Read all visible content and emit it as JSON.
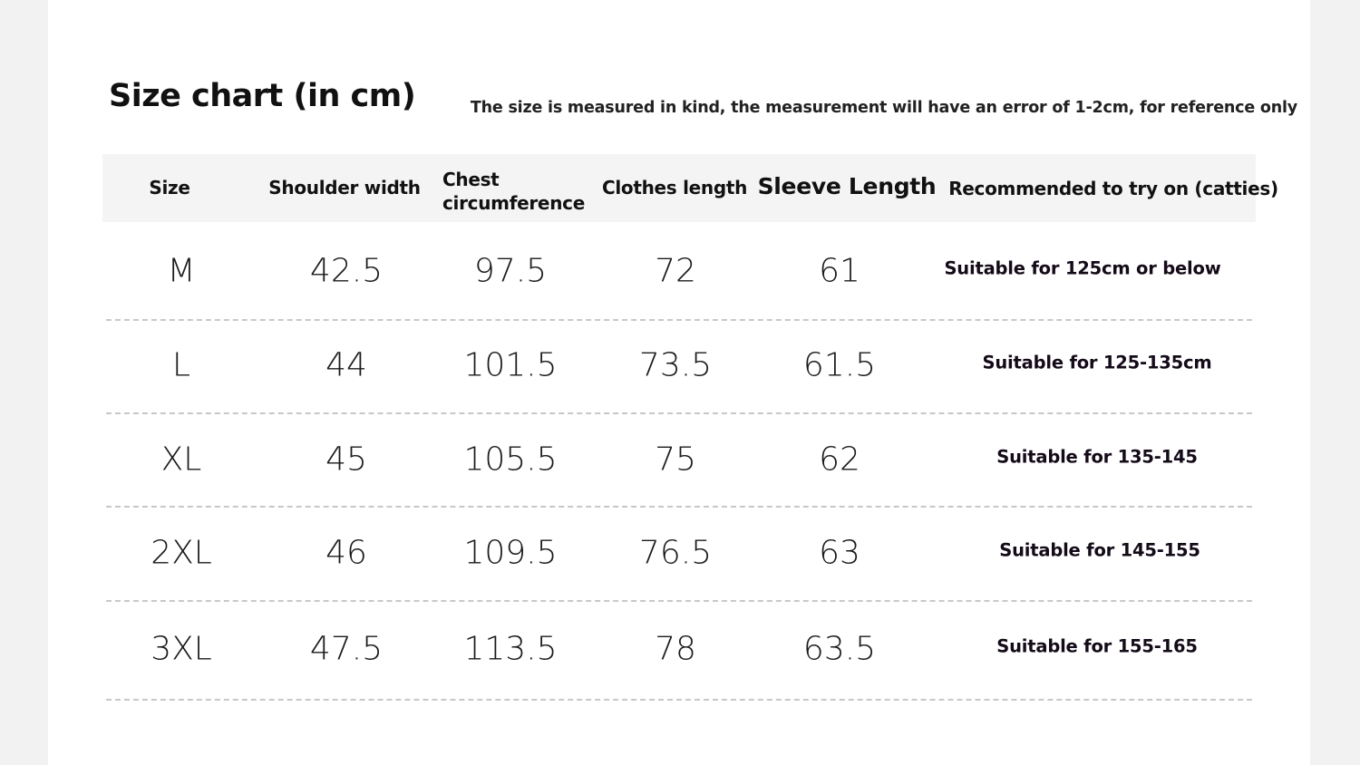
{
  "title": "Size chart (in cm)",
  "note": "The size is measured in kind, the measurement will have an error of 1-2cm, for reference only",
  "headers": [
    "Size",
    "Shoulder width",
    "Chest circumference",
    "Clothes length",
    "Sleeve Length",
    "Recommended to try on (catties)"
  ],
  "rows": [
    {
      "size": "M",
      "shoulder": "42.5",
      "chest": "97.5",
      "length": "72",
      "sleeve": "61",
      "recommended": "Suitable for 125cm or below"
    },
    {
      "size": "L",
      "shoulder": "44",
      "chest": "101.5",
      "length": "73.5",
      "sleeve": "61.5",
      "recommended": "Suitable for 125-135cm"
    },
    {
      "size": "XL",
      "shoulder": "45",
      "chest": "105.5",
      "length": "75",
      "sleeve": "62",
      "recommended": "Suitable for 135-145"
    },
    {
      "size": "2XL",
      "shoulder": "46",
      "chest": "109.5",
      "length": "76.5",
      "sleeve": "63",
      "recommended": "Suitable for 145-155"
    },
    {
      "size": "3XL",
      "shoulder": "47.5",
      "chest": "113.5",
      "length": "78",
      "sleeve": "63.5",
      "recommended": "Suitable for 155-165"
    }
  ]
}
